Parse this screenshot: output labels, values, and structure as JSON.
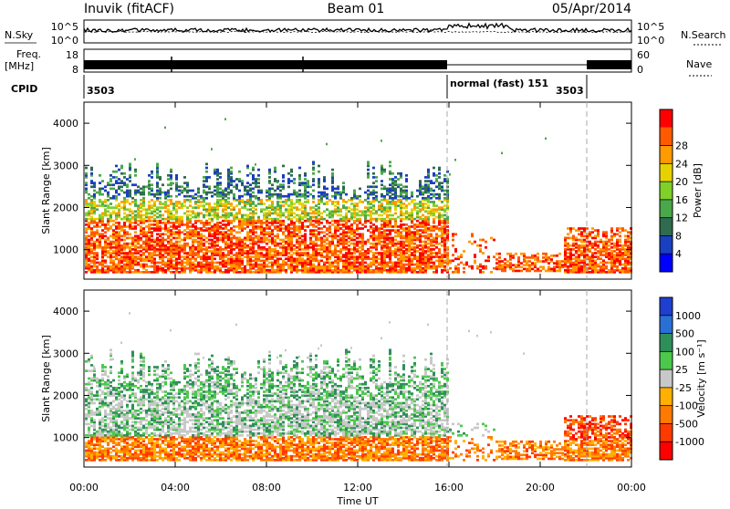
{
  "header": {
    "title": "Inuvik (fitACF)",
    "beam": "Beam 01",
    "date": "05/Apr/2014"
  },
  "panels": {
    "nsky": {
      "left_label": "N.Sky",
      "right_label": "N.Search",
      "ticks_left": [
        "10^5",
        "10^0"
      ],
      "ticks_right": [
        "10^5",
        "10^0"
      ]
    },
    "freq": {
      "left_label_1": "Freq.",
      "left_label_2": "[MHz]",
      "right_label": "Nave",
      "ticks_left": [
        "18",
        "8"
      ],
      "ticks_right": [
        "60",
        "0"
      ]
    },
    "cpid": {
      "label": "CPID",
      "segments": [
        {
          "text": "3503"
        },
        {
          "text": "normal (fast) 151"
        },
        {
          "text": "3503"
        }
      ]
    }
  },
  "chart_data": [
    {
      "type": "heatmap",
      "panel": "power",
      "ylabel": "Slant Range [km]",
      "xlabel": "",
      "x_ticks": [
        "00:00",
        "04:00",
        "08:00",
        "12:00",
        "16:00",
        "20:00",
        "00:00"
      ],
      "y_ticks": [
        "1000",
        "2000",
        "3000",
        "4000"
      ],
      "ylim": [
        300,
        4500
      ],
      "colorbar": {
        "label": "Power [dB]",
        "ticks": [
          "4",
          "8",
          "12",
          "16",
          "20",
          "24",
          "28"
        ],
        "colors": [
          "#0000ff",
          "#1a3fbf",
          "#2f6b4f",
          "#4aa84a",
          "#7fd12a",
          "#e6d200",
          "#ff9a00",
          "#ff5a00",
          "#ff0000"
        ]
      }
    },
    {
      "type": "heatmap",
      "panel": "velocity",
      "ylabel": "Slant Range [km]",
      "xlabel": "Time UT",
      "x_ticks": [
        "00:00",
        "04:00",
        "08:00",
        "12:00",
        "16:00",
        "20:00",
        "00:00"
      ],
      "y_ticks": [
        "1000",
        "2000",
        "3000",
        "4000"
      ],
      "ylim": [
        300,
        4500
      ],
      "colorbar": {
        "label": "Velocity [m s⁻¹]",
        "ticks": [
          "1000",
          "500",
          "100",
          "25",
          "-25",
          "-100",
          "-500",
          "-1000"
        ],
        "colors": [
          "#1f3fd0",
          "#2a6fd6",
          "#2f8f5a",
          "#4cc84c",
          "#c8c8c8",
          "#ffb000",
          "#ff7a00",
          "#ff3a00",
          "#ff0000"
        ]
      }
    }
  ]
}
